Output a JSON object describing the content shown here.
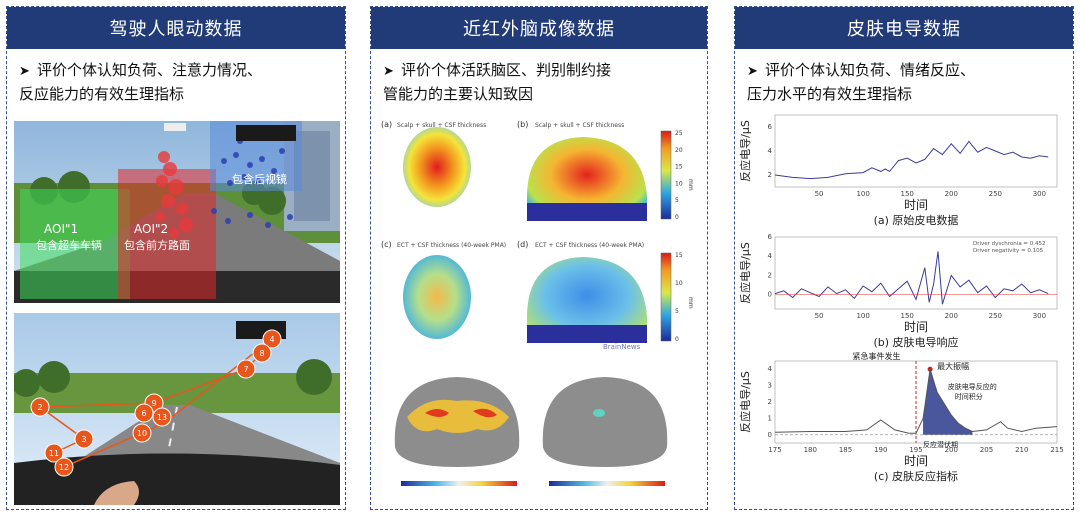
{
  "panels": [
    {
      "title": "驾驶人眼动数据",
      "bullet_line1": "评价个体认知负荷、注意力情况、",
      "bullet_line2": "反应能力的有效生理指标",
      "aoi1_line1": "AOI\"1",
      "aoi1_line2": "包含超车车辆",
      "aoi2_line1": "AOI\"2",
      "aoi2_line2": "包含前方路面",
      "aoi3_text": "包含后视镜",
      "fixation_numbers": [
        "4",
        "8",
        "7",
        "9",
        "6",
        "13",
        "2",
        "3",
        "11",
        "12",
        "10"
      ]
    },
    {
      "title": "近红外脑成像数据",
      "bullet_line1": "评价个体活跃脑区、判别制约接",
      "bullet_line2": "管能力的主要认知致因",
      "label_a": "(a)",
      "label_b": "(b)",
      "label_c": "(c)",
      "label_d": "(d)",
      "caption_ab": "Scalp + skull + CSF thickness",
      "caption_cd": "ECT + CSF thickness (40-week PMA)",
      "colorbar1_ticks": [
        "25",
        "20",
        "15",
        "10",
        "5",
        "0"
      ],
      "colorbar2_ticks": [
        "15",
        "10",
        "5",
        "0"
      ],
      "colorbar_unit": "mm",
      "watermark": "BrainNews"
    },
    {
      "title": "皮肤电导数据",
      "bullet_line1": "评价个体认知负荷、情绪反应、",
      "bullet_line2": "压力水平的有效生理指标",
      "ylabel": "反应电导/μS",
      "xlabel": "时间",
      "caption_a": "(a) 原始皮电数据",
      "caption_b": "(b) 皮肤电导响应",
      "caption_c": "(c) 皮肤反应指标",
      "legend_b1": "Driver dyschronia = 0.452",
      "legend_b2": "Driver negativity = 0.105",
      "annot_event": "紧急事件发生",
      "annot_peak": "最大振幅",
      "annot_integral_1": "皮肤电导反应的",
      "annot_integral_2": "时间积分",
      "annot_latency": "反应潜伏期"
    }
  ],
  "chart_data": [
    {
      "type": "line",
      "title": "(a) 原始皮电数据",
      "xlabel": "时间",
      "ylabel": "反应电导/μS",
      "x_ticks": [
        50,
        100,
        150,
        200,
        250,
        300
      ],
      "y_ticks": [
        2,
        4,
        6
      ],
      "xlim": [
        0,
        320
      ],
      "ylim": [
        1,
        7
      ],
      "x": [
        0,
        20,
        40,
        60,
        80,
        100,
        110,
        120,
        125,
        130,
        140,
        150,
        160,
        170,
        180,
        190,
        200,
        210,
        220,
        230,
        240,
        250,
        260,
        270,
        280,
        290,
        300,
        310
      ],
      "y": [
        2.0,
        1.8,
        1.7,
        1.8,
        2.1,
        2.2,
        2.6,
        2.3,
        2.5,
        2.3,
        3.2,
        3.4,
        3.0,
        3.3,
        4.2,
        3.7,
        4.6,
        3.8,
        4.8,
        3.9,
        4.3,
        4.0,
        3.7,
        3.9,
        3.5,
        3.4,
        3.6,
        3.5
      ]
    },
    {
      "type": "line",
      "title": "(b) 皮肤电导响应",
      "xlabel": "时间",
      "ylabel": "反应电导/μS",
      "x_ticks": [
        50,
        100,
        150,
        200,
        250,
        300
      ],
      "y_ticks": [
        0,
        2,
        4,
        6
      ],
      "xlim": [
        0,
        320
      ],
      "ylim": [
        -1.5,
        6
      ],
      "legend": [
        "Driver dyschronia = 0.452",
        "Driver negativity = 0.105"
      ],
      "x": [
        0,
        10,
        20,
        30,
        40,
        50,
        60,
        70,
        80,
        90,
        100,
        110,
        120,
        130,
        140,
        150,
        160,
        170,
        175,
        180,
        185,
        190,
        200,
        210,
        220,
        230,
        240,
        250,
        260,
        270,
        280,
        290,
        300,
        310
      ],
      "y": [
        0.1,
        0.4,
        -0.3,
        0.6,
        0.2,
        -0.2,
        0.8,
        0.1,
        0.5,
        -0.4,
        0.9,
        0.3,
        1.2,
        -0.2,
        0.6,
        1.4,
        -0.5,
        2.8,
        -0.8,
        1.1,
        4.5,
        -1.0,
        2.0,
        0.8,
        1.5,
        0.2,
        0.9,
        -0.3,
        0.6,
        0.4,
        1.1,
        0.2,
        0.5,
        0.1
      ]
    },
    {
      "type": "line",
      "title": "(c) 皮肤反应指标",
      "xlabel": "时间",
      "ylabel": "反应电导/μS",
      "x_ticks": [
        175,
        180,
        185,
        190,
        195,
        200,
        205,
        210,
        215
      ],
      "y_ticks": [
        0,
        1,
        2,
        3,
        4
      ],
      "xlim": [
        175,
        215
      ],
      "ylim": [
        -0.5,
        4.5
      ],
      "x": [
        175,
        180,
        185,
        188,
        190,
        192,
        194,
        195,
        196,
        197,
        198,
        199,
        200,
        201,
        202,
        203,
        205,
        207,
        208,
        210,
        212,
        215
      ],
      "y": [
        0.15,
        0.2,
        0.2,
        0.3,
        0.9,
        0.3,
        0.1,
        0.1,
        1.0,
        4.0,
        2.6,
        1.9,
        1.2,
        0.7,
        0.4,
        0.2,
        0.3,
        0.8,
        0.4,
        0.2,
        0.4,
        0.5
      ]
    }
  ],
  "colors": {
    "header": "#213b78",
    "border": "#2f4f8f",
    "line_blue": "#3c3c9a",
    "fill_blue": "#2b3a8c",
    "fixation_orange": "#e8561c",
    "event_red": "#cc2222"
  }
}
